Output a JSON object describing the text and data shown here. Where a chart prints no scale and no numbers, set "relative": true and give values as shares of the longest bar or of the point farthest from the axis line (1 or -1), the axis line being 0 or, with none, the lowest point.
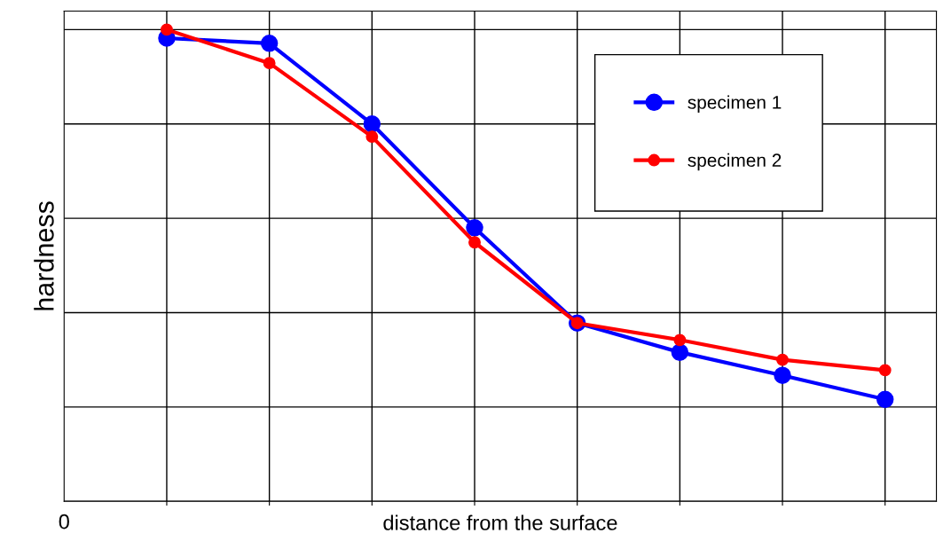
{
  "chart_data": {
    "type": "line",
    "xlabel": "distance from the surface",
    "ylabel": "hardness",
    "relative": true,
    "categories": [
      null,
      null,
      null,
      null,
      null,
      null,
      null,
      null
    ],
    "annotations": [
      "0"
    ],
    "series": [
      {
        "name": "specimen 1",
        "color": "#0000ff",
        "values": [
          0.982,
          0.971,
          0.8,
          0.58,
          0.378,
          0.316,
          0.267,
          0.216
        ]
      },
      {
        "name": "specimen 2",
        "color": "#ff0000",
        "values": [
          1.0,
          0.929,
          0.773,
          0.549,
          0.378,
          0.342,
          0.3,
          0.278
        ]
      }
    ],
    "grid": true,
    "legend": "top right",
    "marker": "circle",
    "line_style": "solid"
  }
}
